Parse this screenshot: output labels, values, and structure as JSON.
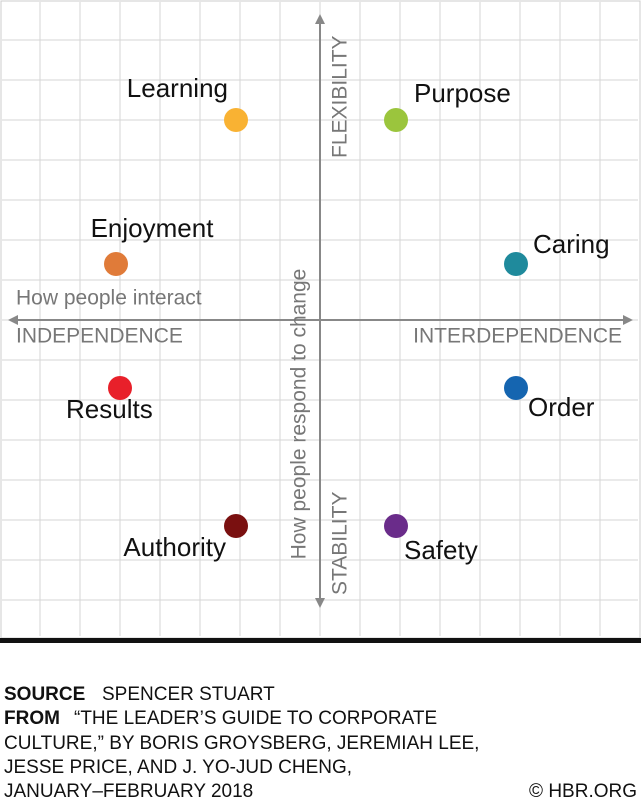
{
  "chart_data": {
    "type": "scatter",
    "x_title": "How people interact",
    "y_title": "How people respond to change",
    "x_low_label": "INDEPENDENCE",
    "x_high_label": "INTERDEPENDENCE",
    "y_low_label": "STABILITY",
    "y_high_label": "FLEXIBILITY",
    "xlim": [
      -8,
      8
    ],
    "ylim": [
      -8,
      8
    ],
    "xticks": [
      -7,
      -6,
      -5,
      -4,
      -3,
      -2,
      -1,
      0,
      1,
      2,
      3,
      4,
      5,
      6,
      7
    ],
    "yticks": [
      -7,
      -6,
      -5,
      -4,
      -3,
      -2,
      -1,
      0,
      1,
      2,
      3,
      4,
      5,
      6,
      7
    ],
    "grid": true,
    "points": [
      {
        "name": "Learning",
        "x": -2.1,
        "y": 5,
        "color": "#f9b233"
      },
      {
        "name": "Purpose",
        "x": 1.9,
        "y": 5,
        "color": "#9bc53d"
      },
      {
        "name": "Enjoyment",
        "x": -5.1,
        "y": 1.4,
        "color": "#e07b39"
      },
      {
        "name": "Caring",
        "x": 4.9,
        "y": 1.4,
        "color": "#1f8a9c"
      },
      {
        "name": "Results",
        "x": -5,
        "y": -1.7,
        "color": "#e8202a"
      },
      {
        "name": "Order",
        "x": 4.9,
        "y": -1.7,
        "color": "#1565b0"
      },
      {
        "name": "Authority",
        "x": -2.1,
        "y": -5.15,
        "color": "#7a1010"
      },
      {
        "name": "Safety",
        "x": 1.9,
        "y": -5.15,
        "color": "#6a2c8a"
      }
    ]
  },
  "footer": {
    "source_label": "SOURCE",
    "source": "SPENCER STUART",
    "from_label": "FROM",
    "from_lines": [
      "“THE LEADER’S GUIDE TO CORPORATE",
      "CULTURE,” BY BORIS GROYSBERG, JEREMIAH LEE,",
      "JESSE PRICE, AND J. YO-JUD CHENG,",
      "JANUARY–FEBRUARY 2018"
    ],
    "credit": "© HBR.ORG"
  }
}
